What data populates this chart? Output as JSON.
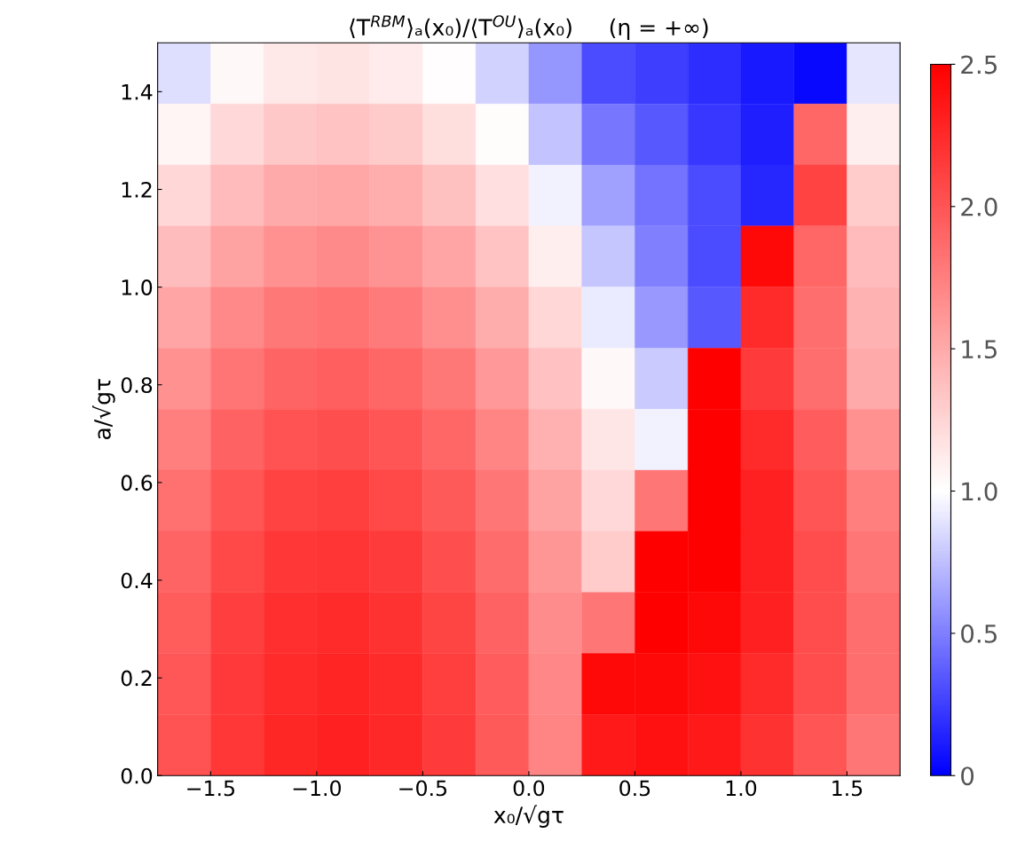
{
  "chart_data": {
    "type": "heatmap",
    "title": "⟨T$^{RBM}$⟩ₐ(x₀)/⟨T$^{OU}$⟩ₐ(x₀)     (η = +∞)",
    "xlabel": "x₀/√gτ",
    "ylabel": "a/√gτ",
    "xlim": [
      -1.75,
      1.75
    ],
    "ylim": [
      0,
      1.5
    ],
    "xticks": [
      {
        "value": -1.5,
        "label": "−1.5"
      },
      {
        "value": -1.0,
        "label": "−1.0"
      },
      {
        "value": -0.5,
        "label": "−0.5"
      },
      {
        "value": 0.0,
        "label": "0.0"
      },
      {
        "value": 0.5,
        "label": "0.5"
      },
      {
        "value": 1.0,
        "label": "1.0"
      },
      {
        "value": 1.5,
        "label": "1.5"
      }
    ],
    "yticks": [
      {
        "value": 0,
        "label": "0.0"
      },
      {
        "value": 0.2,
        "label": "0.2"
      },
      {
        "value": 0.4,
        "label": "0.4"
      },
      {
        "value": 0.6,
        "label": "0.6"
      },
      {
        "value": 0.8,
        "label": "0.8"
      },
      {
        "value": 1.0,
        "label": "1.0"
      },
      {
        "value": 1.2,
        "label": "1.2"
      },
      {
        "value": 1.4,
        "label": "1.4"
      }
    ],
    "clim": [
      0,
      2.5
    ],
    "cticks": [
      0,
      0.5,
      {
        "value": 1.0,
        "label": "1.0"
      },
      1.5,
      {
        "value": 2.0,
        "label": "2.0"
      },
      2.5
    ],
    "cells": [
      [
        0.87,
        1.04,
        1.14,
        1.16,
        1.12,
        1.01,
        0.83,
        0.59,
        0.3,
        0.25,
        0.18,
        0.1,
        0.03,
        0.9
      ],
      [
        1.06,
        1.23,
        1.32,
        1.35,
        1.31,
        1.2,
        1.02,
        0.77,
        0.46,
        0.35,
        0.22,
        0.12,
        1.9,
        1.1
      ],
      [
        1.24,
        1.4,
        1.5,
        1.52,
        1.48,
        1.37,
        1.19,
        0.95,
        0.63,
        0.45,
        0.3,
        0.15,
        2.1,
        1.3
      ],
      [
        1.39,
        1.55,
        1.65,
        1.68,
        1.64,
        1.53,
        1.35,
        1.1,
        0.78,
        0.5,
        0.3,
        2.45,
        1.9,
        1.4
      ],
      [
        1.53,
        1.69,
        1.79,
        1.82,
        1.77,
        1.66,
        1.49,
        1.24,
        0.92,
        0.6,
        0.35,
        2.25,
        1.85,
        1.45
      ],
      [
        1.65,
        1.81,
        1.91,
        1.94,
        1.9,
        1.79,
        1.61,
        1.36,
        1.04,
        0.8,
        2.5,
        2.15,
        1.85,
        1.5
      ],
      [
        1.75,
        1.92,
        2.01,
        2.04,
        2.0,
        1.89,
        1.71,
        1.46,
        1.15,
        0.95,
        2.5,
        2.25,
        1.95,
        1.65
      ],
      [
        1.84,
        2.0,
        2.1,
        2.13,
        2.08,
        1.97,
        1.8,
        1.55,
        1.23,
        1.8,
        2.5,
        2.3,
        2.0,
        1.75
      ],
      [
        1.91,
        2.07,
        2.17,
        2.19,
        2.15,
        2.04,
        1.86,
        1.62,
        1.3,
        2.5,
        2.5,
        2.3,
        2.05,
        1.8
      ],
      [
        1.96,
        2.12,
        2.22,
        2.25,
        2.2,
        2.09,
        1.92,
        1.67,
        1.8,
        2.5,
        2.45,
        2.3,
        2.05,
        1.85
      ],
      [
        1.99,
        2.16,
        2.25,
        2.28,
        2.24,
        2.13,
        1.95,
        1.7,
        2.45,
        2.45,
        2.4,
        2.25,
        2.05,
        1.85
      ],
      [
        2.01,
        2.17,
        2.27,
        2.3,
        2.26,
        2.15,
        1.97,
        1.72,
        2.35,
        2.4,
        2.35,
        2.2,
        2.0,
        1.8
      ]
    ]
  }
}
